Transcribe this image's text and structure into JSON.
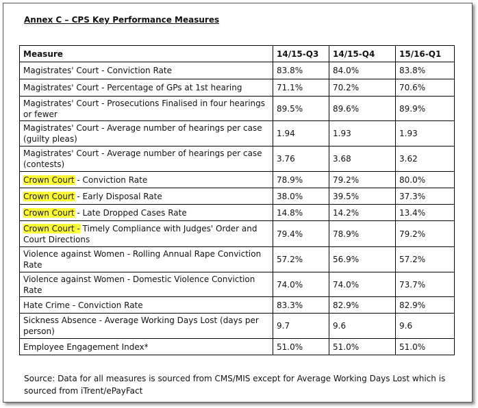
{
  "header": {
    "title": "Annex C – CPS Key Performance Measures"
  },
  "table": {
    "columns": [
      "Measure",
      "14/15-Q3",
      "14/15-Q4",
      "15/16-Q1"
    ],
    "rows": [
      {
        "measure": "Magistrates' Court - Conviction Rate",
        "values": [
          "83.8%",
          "84.0%",
          "83.8%"
        ]
      },
      {
        "measure": "Magistrates' Court - Percentage of GPs at 1st hearing",
        "values": [
          "71.1%",
          "70.2%",
          "70.6%"
        ]
      },
      {
        "measure": "Magistrates' Court - Prosecutions Finalised in four hearings or fewer",
        "values": [
          "89.5%",
          "89.6%",
          "89.9%"
        ]
      },
      {
        "measure": "Magistrates' Court - Average number of hearings per case (guilty pleas)",
        "values": [
          "1.94",
          "1.93",
          "1.93"
        ]
      },
      {
        "measure": "Magistrates' Court - Average number of hearings per case (contests)",
        "values": [
          "3.76",
          "3.68",
          "3.62"
        ]
      },
      {
        "measure": {
          "highlight": "Crown Court",
          "text": " - Conviction Rate"
        },
        "values": [
          "78.9%",
          "79.2%",
          "80.0%"
        ]
      },
      {
        "measure": {
          "highlight": "Crown Court",
          "text": " - Early Disposal Rate"
        },
        "values": [
          "38.0%",
          "39.5%",
          "37.3%"
        ]
      },
      {
        "measure": {
          "highlight": "Crown Court",
          "text": " - Late Dropped Cases Rate"
        },
        "values": [
          "14.8%",
          "14.2%",
          "13.4%"
        ]
      },
      {
        "measure": {
          "highlight": "Crown Court -",
          "text": " Timely Compliance with Judges' Order and Court Directions"
        },
        "values": [
          "79.4%",
          "78.9%",
          "79.2%"
        ]
      },
      {
        "measure": "Violence against Women - Rolling Annual Rape Conviction Rate",
        "values": [
          "57.2%",
          "56.9%",
          "57.2%"
        ]
      },
      {
        "measure": "Violence against Women - Domestic Violence Conviction Rate",
        "values": [
          "74.0%",
          "74.0%",
          "73.7%"
        ]
      },
      {
        "measure": "Hate Crime - Conviction Rate",
        "values": [
          "83.3%",
          "82.9%",
          "82.9%"
        ]
      },
      {
        "measure": "Sickness Absence - Average Working Days Lost (days per person)",
        "values": [
          "9.7",
          "9.6",
          "9.6"
        ]
      },
      {
        "measure": "Employee Engagement Index*",
        "values": [
          "51.0%",
          "51.0%",
          "51.0%"
        ]
      }
    ]
  },
  "source": "Source:  Data for all measures is sourced from CMS/MIS except for Average Working Days Lost which is sourced from iTrent/ePayFact"
}
